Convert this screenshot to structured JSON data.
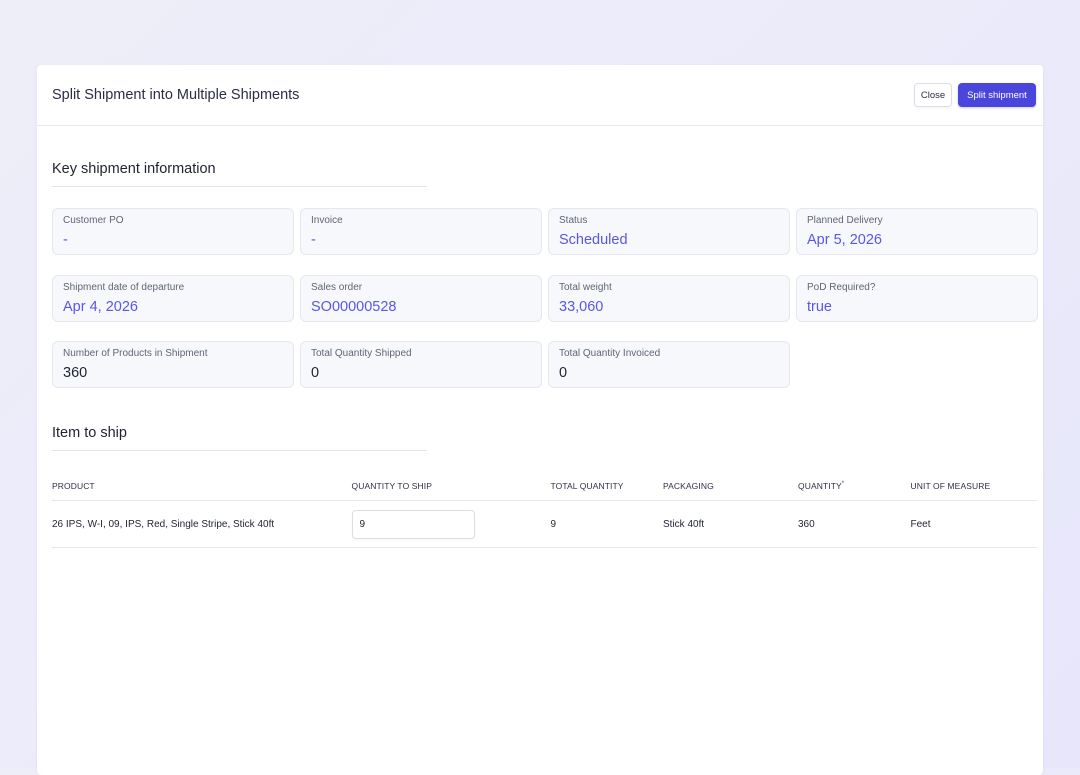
{
  "modal": {
    "title": "Split Shipment into Multiple Shipments",
    "close_label": "Close",
    "split_label": "Split shipment"
  },
  "key_info": {
    "title": "Key shipment information",
    "fields": [
      {
        "label": "Customer PO",
        "value": "-"
      },
      {
        "label": "Invoice",
        "value": "-"
      },
      {
        "label": "Status",
        "value": "Scheduled"
      },
      {
        "label": "Planned Delivery",
        "value": "Apr 5, 2026"
      },
      {
        "label": "Shipment date of departure",
        "value": "Apr 4, 2026"
      },
      {
        "label": "Sales order",
        "value": "SO00000528"
      },
      {
        "label": "Total weight",
        "value": "33,060"
      },
      {
        "label": "PoD Required?",
        "value": "true"
      },
      {
        "label": "Number of Products in Shipment",
        "value": "360"
      },
      {
        "label": "Total Quantity Shipped",
        "value": "0"
      },
      {
        "label": "Total Quantity Invoiced",
        "value": "0"
      }
    ]
  },
  "items": {
    "title": "Item to ship",
    "columns": {
      "product": "Product",
      "quantity_to_ship": "Quantity to ship",
      "total_quantity": "Total quantity",
      "packaging": "Packaging",
      "quantity": "Quantity",
      "quantity_marker": "*",
      "unit_of_measure": "Unit of measure"
    },
    "rows": [
      {
        "product": "26 IPS, W-I, 09, IPS, Red, Single Stripe, Stick 40ft",
        "quantity_to_ship": "9",
        "total_quantity": "9",
        "packaging": "Stick 40ft",
        "quantity": "360",
        "unit_of_measure": "Feet"
      }
    ]
  },
  "colors": {
    "accent": "#5a56e6",
    "primary_button": "#4a46db"
  }
}
